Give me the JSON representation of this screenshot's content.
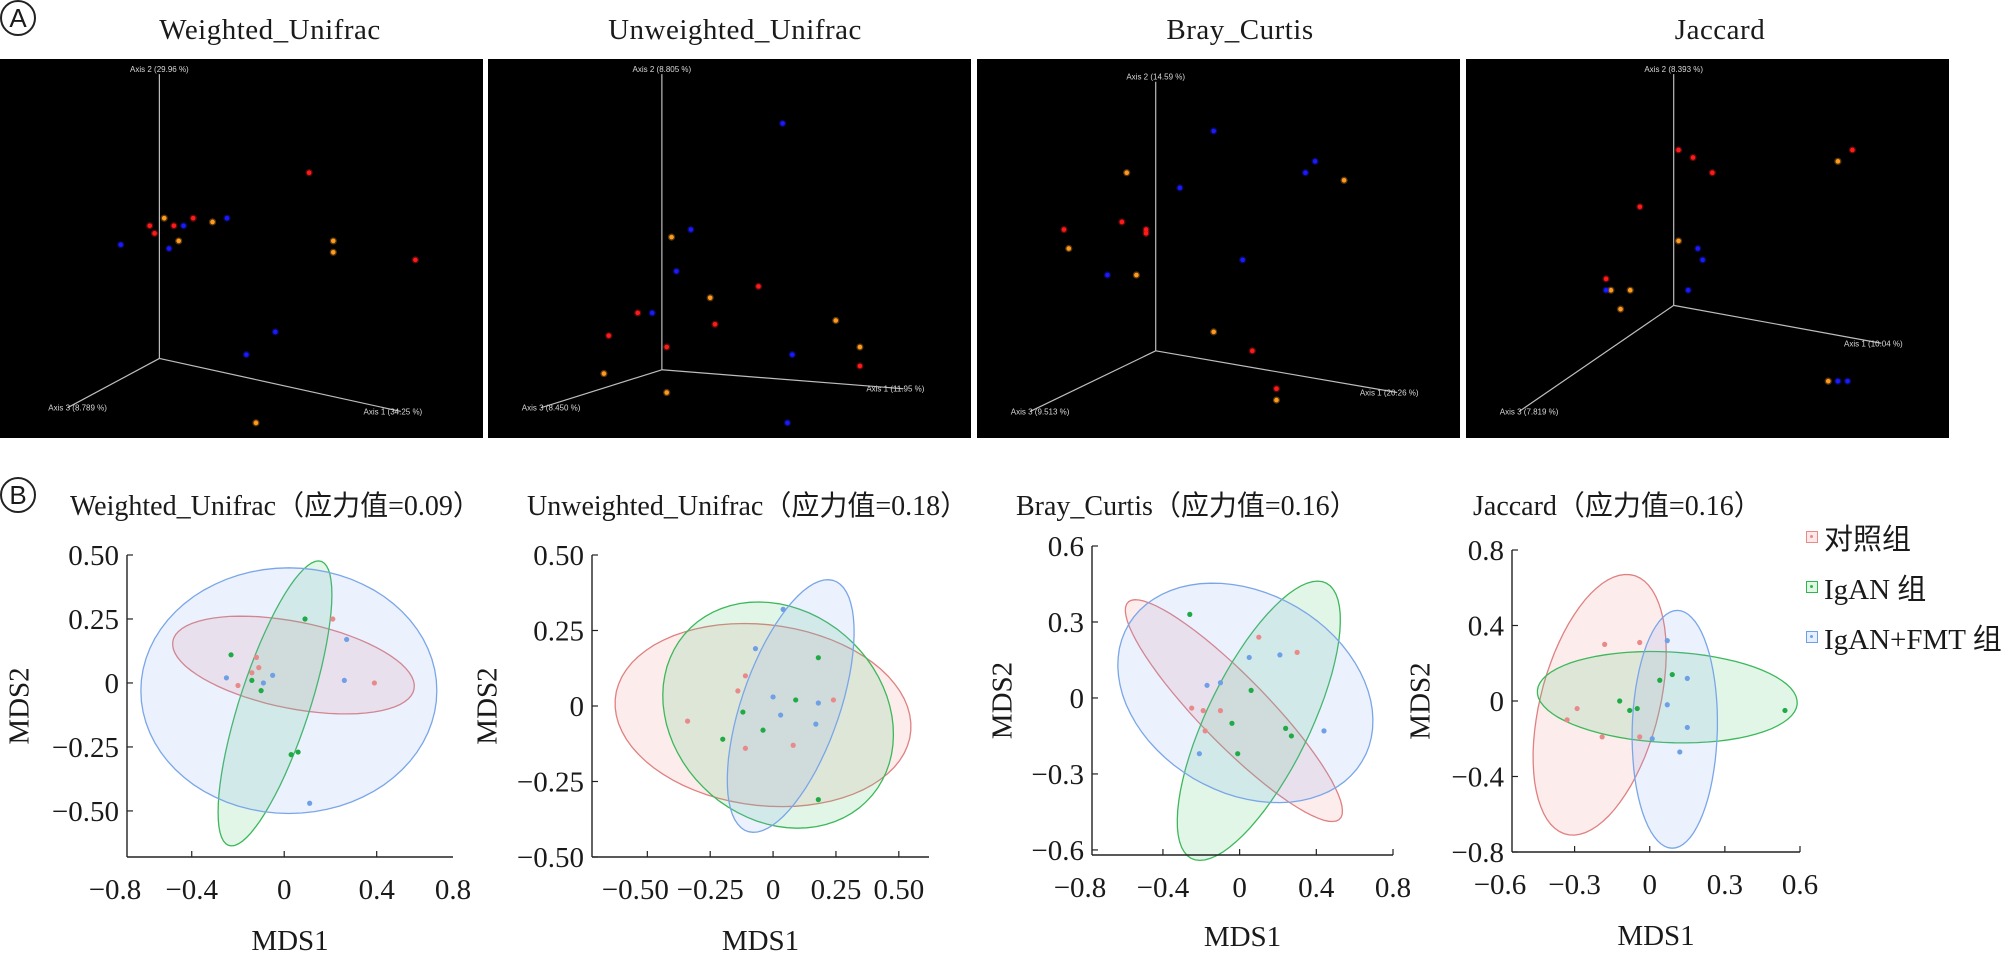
{
  "panel_a": {
    "marker": "A",
    "plots": [
      {
        "title": "Weighted_Unifrac",
        "axis1": "Axis 1 (34.25 %)",
        "axis2": "Axis 2 (29.96 %)",
        "axis3": "Axis 3 (8.789 %)"
      },
      {
        "title": "Unweighted_Unifrac",
        "axis1": "Axis 1 (11.95 %)",
        "axis2": "Axis 2 (8.805 %)",
        "axis3": "Axis 3 (8.450 %)"
      },
      {
        "title": "Bray_Curtis",
        "axis1": "Axis 1 (20.26 %)",
        "axis2": "Axis 2 (14.59 %)",
        "axis3": "Axis 3 (9.513 %)"
      },
      {
        "title": "Jaccard",
        "axis1": "Axis 1 (10.04 %)",
        "axis2": "Axis 2 (8.393 %)",
        "axis3": "Axis 3 (7.819 %)"
      }
    ]
  },
  "panel_b": {
    "marker": "B",
    "plots": [
      {
        "title": "Weighted_Unifrac（应力值=0.09）"
      },
      {
        "title": "Unweighted_Unifrac（应力值=0.18）"
      },
      {
        "title": "Bray_Curtis（应力值=0.16）"
      },
      {
        "title": "Jaccard（应力值=0.16）"
      }
    ]
  },
  "legend": {
    "items": [
      {
        "label": "对照组",
        "color": "#e88a8a"
      },
      {
        "label": "IgAN 组",
        "color": "#2db84d"
      },
      {
        "label": "IgAN+FMT 组",
        "color": "#6f9fe6"
      }
    ]
  },
  "chart_data": [
    {
      "type": "scatter3d",
      "title": "Weighted_Unifrac",
      "projection": "screen-normalized (0-1) positions of 3D PCoA points",
      "group_colors": {
        "red": "#ff1a1a",
        "orange": "#ff9a1f",
        "blue": "#1a1aff"
      },
      "points": [
        {
          "g": "red",
          "x": 0.64,
          "y": 0.3
        },
        {
          "g": "red",
          "x": 0.86,
          "y": 0.53
        },
        {
          "g": "red",
          "x": 0.31,
          "y": 0.44
        },
        {
          "g": "red",
          "x": 0.32,
          "y": 0.46
        },
        {
          "g": "red",
          "x": 0.36,
          "y": 0.44
        },
        {
          "g": "red",
          "x": 0.4,
          "y": 0.42
        },
        {
          "g": "orange",
          "x": 0.34,
          "y": 0.42
        },
        {
          "g": "orange",
          "x": 0.44,
          "y": 0.43
        },
        {
          "g": "orange",
          "x": 0.37,
          "y": 0.48
        },
        {
          "g": "orange",
          "x": 0.69,
          "y": 0.48
        },
        {
          "g": "orange",
          "x": 0.69,
          "y": 0.51
        },
        {
          "g": "orange",
          "x": 0.53,
          "y": 0.96
        },
        {
          "g": "blue",
          "x": 0.25,
          "y": 0.49
        },
        {
          "g": "blue",
          "x": 0.35,
          "y": 0.5
        },
        {
          "g": "blue",
          "x": 0.38,
          "y": 0.44
        },
        {
          "g": "blue",
          "x": 0.47,
          "y": 0.42
        },
        {
          "g": "blue",
          "x": 0.57,
          "y": 0.72
        },
        {
          "g": "blue",
          "x": 0.51,
          "y": 0.78
        }
      ]
    },
    {
      "type": "scatter3d",
      "title": "Unweighted_Unifrac",
      "group_colors": {
        "red": "#ff1a1a",
        "orange": "#ff9a1f",
        "blue": "#1a1aff"
      },
      "points": [
        {
          "g": "red",
          "x": 0.56,
          "y": 0.6
        },
        {
          "g": "red",
          "x": 0.31,
          "y": 0.67
        },
        {
          "g": "red",
          "x": 0.25,
          "y": 0.73
        },
        {
          "g": "red",
          "x": 0.47,
          "y": 0.7
        },
        {
          "g": "red",
          "x": 0.37,
          "y": 0.76
        },
        {
          "g": "red",
          "x": 0.77,
          "y": 0.81
        },
        {
          "g": "orange",
          "x": 0.38,
          "y": 0.47
        },
        {
          "g": "orange",
          "x": 0.46,
          "y": 0.63
        },
        {
          "g": "orange",
          "x": 0.72,
          "y": 0.69
        },
        {
          "g": "orange",
          "x": 0.77,
          "y": 0.76
        },
        {
          "g": "orange",
          "x": 0.24,
          "y": 0.83
        },
        {
          "g": "orange",
          "x": 0.37,
          "y": 0.88
        },
        {
          "g": "blue",
          "x": 0.61,
          "y": 0.17
        },
        {
          "g": "blue",
          "x": 0.42,
          "y": 0.45
        },
        {
          "g": "blue",
          "x": 0.39,
          "y": 0.56
        },
        {
          "g": "blue",
          "x": 0.34,
          "y": 0.67
        },
        {
          "g": "blue",
          "x": 0.63,
          "y": 0.78
        },
        {
          "g": "blue",
          "x": 0.62,
          "y": 0.96
        }
      ]
    },
    {
      "type": "scatter3d",
      "title": "Bray_Curtis",
      "group_colors": {
        "red": "#ff1a1a",
        "orange": "#ff9a1f",
        "blue": "#1a1aff"
      },
      "points": [
        {
          "g": "red",
          "x": 0.18,
          "y": 0.45
        },
        {
          "g": "red",
          "x": 0.3,
          "y": 0.43
        },
        {
          "g": "red",
          "x": 0.35,
          "y": 0.45
        },
        {
          "g": "red",
          "x": 0.35,
          "y": 0.46
        },
        {
          "g": "red",
          "x": 0.57,
          "y": 0.77
        },
        {
          "g": "red",
          "x": 0.62,
          "y": 0.87
        },
        {
          "g": "orange",
          "x": 0.31,
          "y": 0.3
        },
        {
          "g": "orange",
          "x": 0.19,
          "y": 0.5
        },
        {
          "g": "orange",
          "x": 0.33,
          "y": 0.57
        },
        {
          "g": "orange",
          "x": 0.76,
          "y": 0.32
        },
        {
          "g": "orange",
          "x": 0.49,
          "y": 0.72
        },
        {
          "g": "orange",
          "x": 0.62,
          "y": 0.9
        },
        {
          "g": "blue",
          "x": 0.49,
          "y": 0.19
        },
        {
          "g": "blue",
          "x": 0.42,
          "y": 0.34
        },
        {
          "g": "blue",
          "x": 0.7,
          "y": 0.27
        },
        {
          "g": "blue",
          "x": 0.68,
          "y": 0.3
        },
        {
          "g": "blue",
          "x": 0.27,
          "y": 0.57
        },
        {
          "g": "blue",
          "x": 0.55,
          "y": 0.53
        }
      ]
    },
    {
      "type": "scatter3d",
      "title": "Jaccard",
      "group_colors": {
        "red": "#ff1a1a",
        "orange": "#ff9a1f",
        "blue": "#1a1aff"
      },
      "points": [
        {
          "g": "red",
          "x": 0.44,
          "y": 0.24
        },
        {
          "g": "red",
          "x": 0.47,
          "y": 0.26
        },
        {
          "g": "red",
          "x": 0.51,
          "y": 0.3
        },
        {
          "g": "red",
          "x": 0.36,
          "y": 0.39
        },
        {
          "g": "red",
          "x": 0.29,
          "y": 0.58
        },
        {
          "g": "red",
          "x": 0.8,
          "y": 0.24
        },
        {
          "g": "orange",
          "x": 0.44,
          "y": 0.48
        },
        {
          "g": "orange",
          "x": 0.3,
          "y": 0.61
        },
        {
          "g": "orange",
          "x": 0.34,
          "y": 0.61
        },
        {
          "g": "orange",
          "x": 0.32,
          "y": 0.66
        },
        {
          "g": "orange",
          "x": 0.77,
          "y": 0.27
        },
        {
          "g": "orange",
          "x": 0.75,
          "y": 0.85
        },
        {
          "g": "blue",
          "x": 0.48,
          "y": 0.5
        },
        {
          "g": "blue",
          "x": 0.49,
          "y": 0.53
        },
        {
          "g": "blue",
          "x": 0.46,
          "y": 0.61
        },
        {
          "g": "blue",
          "x": 0.29,
          "y": 0.61
        },
        {
          "g": "blue",
          "x": 0.77,
          "y": 0.85
        },
        {
          "g": "blue",
          "x": 0.79,
          "y": 0.85
        }
      ]
    },
    {
      "type": "scatter",
      "title": "Weighted_Unifrac（应力值=0.09）",
      "xlabel": "MDS1",
      "ylabel": "MDS2",
      "xlim": [
        -0.68,
        0.73
      ],
      "ylim": [
        -0.68,
        0.5
      ],
      "xticks": [
        -0.8,
        -0.4,
        0,
        0.4,
        0.8
      ],
      "xtick_labels": [
        "−0.8",
        "−0.4",
        "0",
        "0.4",
        "0.8"
      ],
      "yticks": [
        0.5,
        0.25,
        0,
        -0.25,
        -0.5
      ],
      "ytick_labels": [
        "0.50",
        "0.25",
        "0",
        "−0.25",
        "−0.50"
      ],
      "series": [
        {
          "name": "对照组",
          "color": "#e88a8a",
          "points": [
            [
              0.21,
              0.25
            ],
            [
              -0.12,
              0.1
            ],
            [
              -0.11,
              0.06
            ],
            [
              -0.14,
              0.04
            ],
            [
              -0.2,
              -0.01
            ],
            [
              0.39,
              0.0
            ]
          ],
          "ellipse": {
            "cx": 0.04,
            "cy": 0.07,
            "rx": 0.53,
            "ry": 0.17,
            "angle_deg": -10
          }
        },
        {
          "name": "IgAN 组",
          "color": "#2db84d",
          "points": [
            [
              0.09,
              0.25
            ],
            [
              -0.23,
              0.11
            ],
            [
              -0.14,
              0.01
            ],
            [
              -0.1,
              -0.03
            ],
            [
              0.03,
              -0.28
            ],
            [
              0.06,
              -0.27
            ]
          ],
          "ellipse": {
            "cx": -0.04,
            "cy": -0.08,
            "rx": 0.59,
            "ry": 0.15,
            "angle_deg": 70
          }
        },
        {
          "name": "IgAN+FMT 组",
          "color": "#6f9fe6",
          "points": [
            [
              0.27,
              0.17
            ],
            [
              -0.25,
              0.02
            ],
            [
              -0.05,
              0.03
            ],
            [
              -0.09,
              0.0
            ],
            [
              0.26,
              0.01
            ],
            [
              0.11,
              -0.47
            ]
          ],
          "ellipse": {
            "cx": 0.02,
            "cy": -0.03,
            "rx": 0.64,
            "ry": 0.48,
            "angle_deg": 0
          }
        }
      ]
    },
    {
      "type": "scatter",
      "title": "Unweighted_Unifrac（应力值=0.18）",
      "xlabel": "MDS1",
      "ylabel": "MDS2",
      "xlim": [
        -0.72,
        0.62
      ],
      "ylim": [
        -0.5,
        0.5
      ],
      "xticks": [
        -0.5,
        -0.25,
        0,
        0.25,
        0.5
      ],
      "xtick_labels": [
        "−0.50",
        "−0.25",
        "0",
        "0.25",
        "0.50"
      ],
      "yticks": [
        0.5,
        0.25,
        0,
        -0.25,
        -0.5
      ],
      "ytick_labels": [
        "0.50",
        "0.25",
        "0",
        "−0.25",
        "−0.50"
      ],
      "series": [
        {
          "name": "对照组",
          "color": "#e88a8a",
          "points": [
            [
              -0.34,
              -0.05
            ],
            [
              -0.11,
              0.1
            ],
            [
              -0.14,
              0.05
            ],
            [
              -0.11,
              -0.14
            ],
            [
              0.08,
              -0.13
            ],
            [
              0.24,
              0.02
            ]
          ],
          "ellipse": {
            "cx": -0.04,
            "cy": -0.03,
            "rx": 0.59,
            "ry": 0.3,
            "angle_deg": -5
          }
        },
        {
          "name": "IgAN 组",
          "color": "#2db84d",
          "points": [
            [
              -0.2,
              -0.11
            ],
            [
              -0.12,
              -0.02
            ],
            [
              -0.04,
              -0.08
            ],
            [
              0.09,
              0.02
            ],
            [
              0.18,
              0.16
            ],
            [
              0.18,
              -0.31
            ]
          ],
          "ellipse": {
            "cx": 0.02,
            "cy": -0.03,
            "rx": 0.47,
            "ry": 0.36,
            "angle_deg": -20
          }
        },
        {
          "name": "IgAN+FMT 组",
          "color": "#6f9fe6",
          "points": [
            [
              0.04,
              0.32
            ],
            [
              -0.07,
              0.19
            ],
            [
              0.0,
              0.03
            ],
            [
              0.03,
              -0.03
            ],
            [
              0.18,
              0.01
            ],
            [
              0.17,
              -0.06
            ]
          ],
          "ellipse": {
            "cx": 0.07,
            "cy": 0.0,
            "rx": 0.45,
            "ry": 0.19,
            "angle_deg": 66
          }
        }
      ]
    },
    {
      "type": "scatter",
      "title": "Bray_Curtis（应力值=0.16）",
      "xlabel": "MDS1",
      "ylabel": "MDS2",
      "xlim": [
        -0.77,
        0.8
      ],
      "ylim": [
        -0.62,
        0.6
      ],
      "xticks": [
        -0.8,
        -0.4,
        0,
        0.4,
        0.8
      ],
      "xtick_labels": [
        "−0.8",
        "−0.4",
        "0",
        "0.4",
        "0.8"
      ],
      "yticks": [
        0.6,
        0.3,
        0,
        -0.3,
        -0.6
      ],
      "ytick_labels": [
        "0.6",
        "0.3",
        "0",
        "−0.3",
        "−0.6"
      ],
      "series": [
        {
          "name": "对照组",
          "color": "#e88a8a",
          "points": [
            [
              0.1,
              0.24
            ],
            [
              0.3,
              0.18
            ],
            [
              -0.25,
              -0.04
            ],
            [
              -0.19,
              -0.05
            ],
            [
              -0.1,
              -0.05
            ],
            [
              -0.18,
              -0.13
            ]
          ],
          "ellipse": {
            "cx": -0.03,
            "cy": -0.05,
            "rx": 0.7,
            "ry": 0.15,
            "angle_deg": -37
          }
        },
        {
          "name": "IgAN 组",
          "color": "#2db84d",
          "points": [
            [
              -0.26,
              0.33
            ],
            [
              0.06,
              0.03
            ],
            [
              -0.04,
              -0.1
            ],
            [
              -0.01,
              -0.22
            ],
            [
              0.24,
              -0.12
            ],
            [
              0.27,
              -0.15
            ]
          ],
          "ellipse": {
            "cx": 0.1,
            "cy": -0.09,
            "rx": 0.65,
            "ry": 0.25,
            "angle_deg": 55
          }
        },
        {
          "name": "IgAN+FMT 组",
          "color": "#6f9fe6",
          "points": [
            [
              0.05,
              0.16
            ],
            [
              0.21,
              0.17
            ],
            [
              -0.17,
              0.05
            ],
            [
              -0.1,
              0.06
            ],
            [
              -0.21,
              -0.22
            ],
            [
              0.44,
              -0.13
            ]
          ],
          "ellipse": {
            "cx": 0.03,
            "cy": 0.02,
            "rx": 0.68,
            "ry": 0.41,
            "angle_deg": -15
          }
        }
      ]
    },
    {
      "type": "scatter",
      "title": "Jaccard（应力值=0.16）",
      "xlabel": "MDS1",
      "ylabel": "MDS2",
      "xlim": [
        -0.55,
        0.6
      ],
      "ylim": [
        -0.8,
        0.8
      ],
      "xticks": [
        -0.6,
        -0.3,
        0,
        0.3,
        0.6
      ],
      "xtick_labels": [
        "−0.6",
        "−0.3",
        "0",
        "0.3",
        "0.6"
      ],
      "yticks": [
        0.8,
        0.4,
        0,
        -0.4,
        -0.8
      ],
      "ytick_labels": [
        "0.8",
        "0.4",
        "0",
        "−0.4",
        "−0.8"
      ],
      "series": [
        {
          "name": "对照组",
          "color": "#e88a8a",
          "points": [
            [
              -0.18,
              0.3
            ],
            [
              -0.04,
              0.31
            ],
            [
              -0.29,
              -0.04
            ],
            [
              -0.33,
              -0.1
            ],
            [
              -0.19,
              -0.19
            ],
            [
              -0.04,
              -0.19
            ]
          ],
          "ellipse": {
            "cx": -0.2,
            "cy": -0.02,
            "rx": 0.7,
            "ry": 0.24,
            "angle_deg": 80
          }
        },
        {
          "name": "IgAN 组",
          "color": "#2db84d",
          "points": [
            [
              0.04,
              0.11
            ],
            [
              0.09,
              0.14
            ],
            [
              -0.12,
              0.0
            ],
            [
              -0.08,
              -0.05
            ],
            [
              -0.05,
              -0.04
            ],
            [
              0.54,
              -0.05
            ]
          ],
          "ellipse": {
            "cx": 0.07,
            "cy": 0.02,
            "rx": 0.52,
            "ry": 0.24,
            "angle_deg": -4
          }
        },
        {
          "name": "IgAN+FMT 组",
          "color": "#6f9fe6",
          "points": [
            [
              0.07,
              0.32
            ],
            [
              0.15,
              0.12
            ],
            [
              0.07,
              -0.02
            ],
            [
              0.01,
              -0.2
            ],
            [
              0.15,
              -0.14
            ],
            [
              0.12,
              -0.27
            ]
          ],
          "ellipse": {
            "cx": 0.1,
            "cy": -0.15,
            "rx": 0.63,
            "ry": 0.17,
            "angle_deg": 89
          }
        }
      ]
    }
  ]
}
